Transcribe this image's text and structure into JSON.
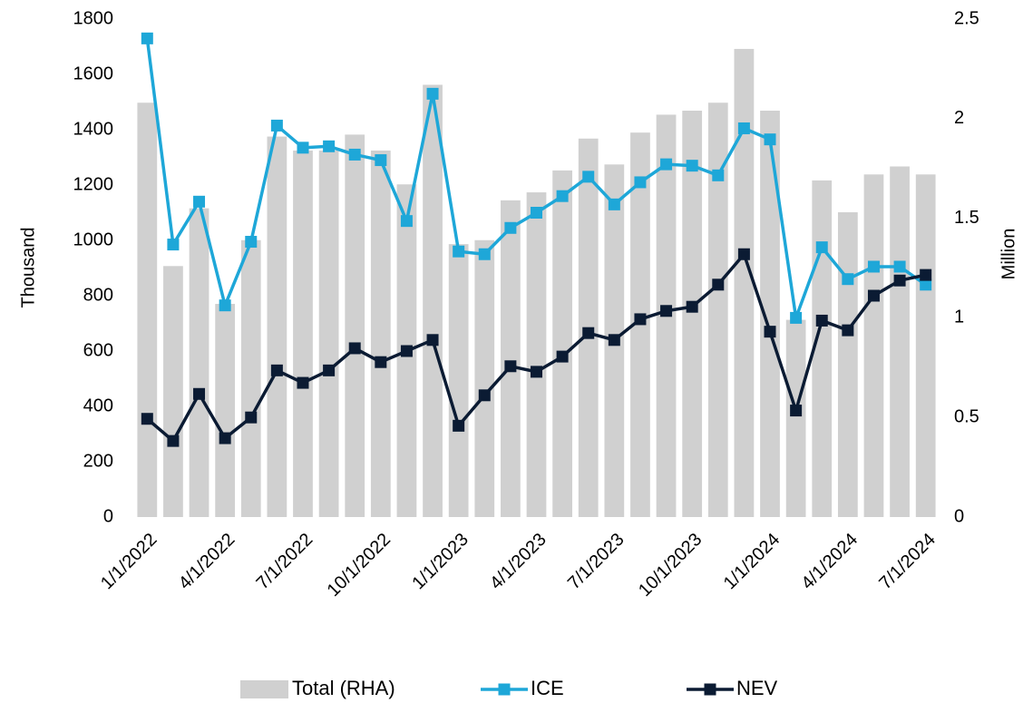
{
  "chart_data": {
    "type": "combo",
    "categories": [
      "1/1/2022",
      null,
      null,
      "4/1/2022",
      null,
      null,
      "7/1/2022",
      null,
      null,
      "10/1/2022",
      null,
      null,
      "1/1/2023",
      null,
      null,
      "4/1/2023",
      null,
      null,
      "7/1/2023",
      null,
      null,
      "10/1/2023",
      null,
      null,
      "1/1/2024",
      null,
      null,
      "4/1/2024",
      null,
      null,
      "7/1/2024"
    ],
    "ylabel": "Thousand",
    "y2label": "Million",
    "ylim": [
      0,
      1800
    ],
    "yticks": [
      0,
      200,
      400,
      600,
      800,
      1000,
      1200,
      1400,
      1600,
      1800
    ],
    "y2lim": [
      0,
      2.5
    ],
    "y2ticks": [
      0,
      0.5,
      1,
      1.5,
      2,
      2.5
    ],
    "legend": "bottom",
    "series": [
      {
        "name": "Total (RHA)",
        "type": "bar",
        "axis": "y2",
        "color": "#d0d0d0",
        "values": [
          2.08,
          1.26,
          1.55,
          1.07,
          1.39,
          1.91,
          1.84,
          1.84,
          1.92,
          1.84,
          1.67,
          2.17,
          1.37,
          1.39,
          1.59,
          1.63,
          1.74,
          1.9,
          1.77,
          1.93,
          2.02,
          2.04,
          2.08,
          2.35,
          2.04,
          0.99,
          1.69,
          1.53,
          1.72,
          1.76,
          1.72
        ]
      },
      {
        "name": "ICE",
        "type": "line",
        "color": "#1ea7d8",
        "values": [
          1730,
          985,
          1140,
          765,
          995,
          1415,
          1335,
          1340,
          1310,
          1290,
          1070,
          1530,
          960,
          950,
          1045,
          1100,
          1160,
          1230,
          1130,
          1210,
          1275,
          1270,
          1235,
          1405,
          1365,
          720,
          975,
          860,
          905,
          905,
          840
        ]
      },
      {
        "name": "NEV",
        "type": "line",
        "color": "#0b1b33",
        "values": [
          355,
          275,
          445,
          285,
          360,
          530,
          485,
          530,
          610,
          560,
          600,
          640,
          330,
          440,
          545,
          525,
          580,
          665,
          640,
          715,
          745,
          760,
          840,
          950,
          670,
          385,
          710,
          675,
          800,
          855,
          875
        ]
      }
    ]
  }
}
